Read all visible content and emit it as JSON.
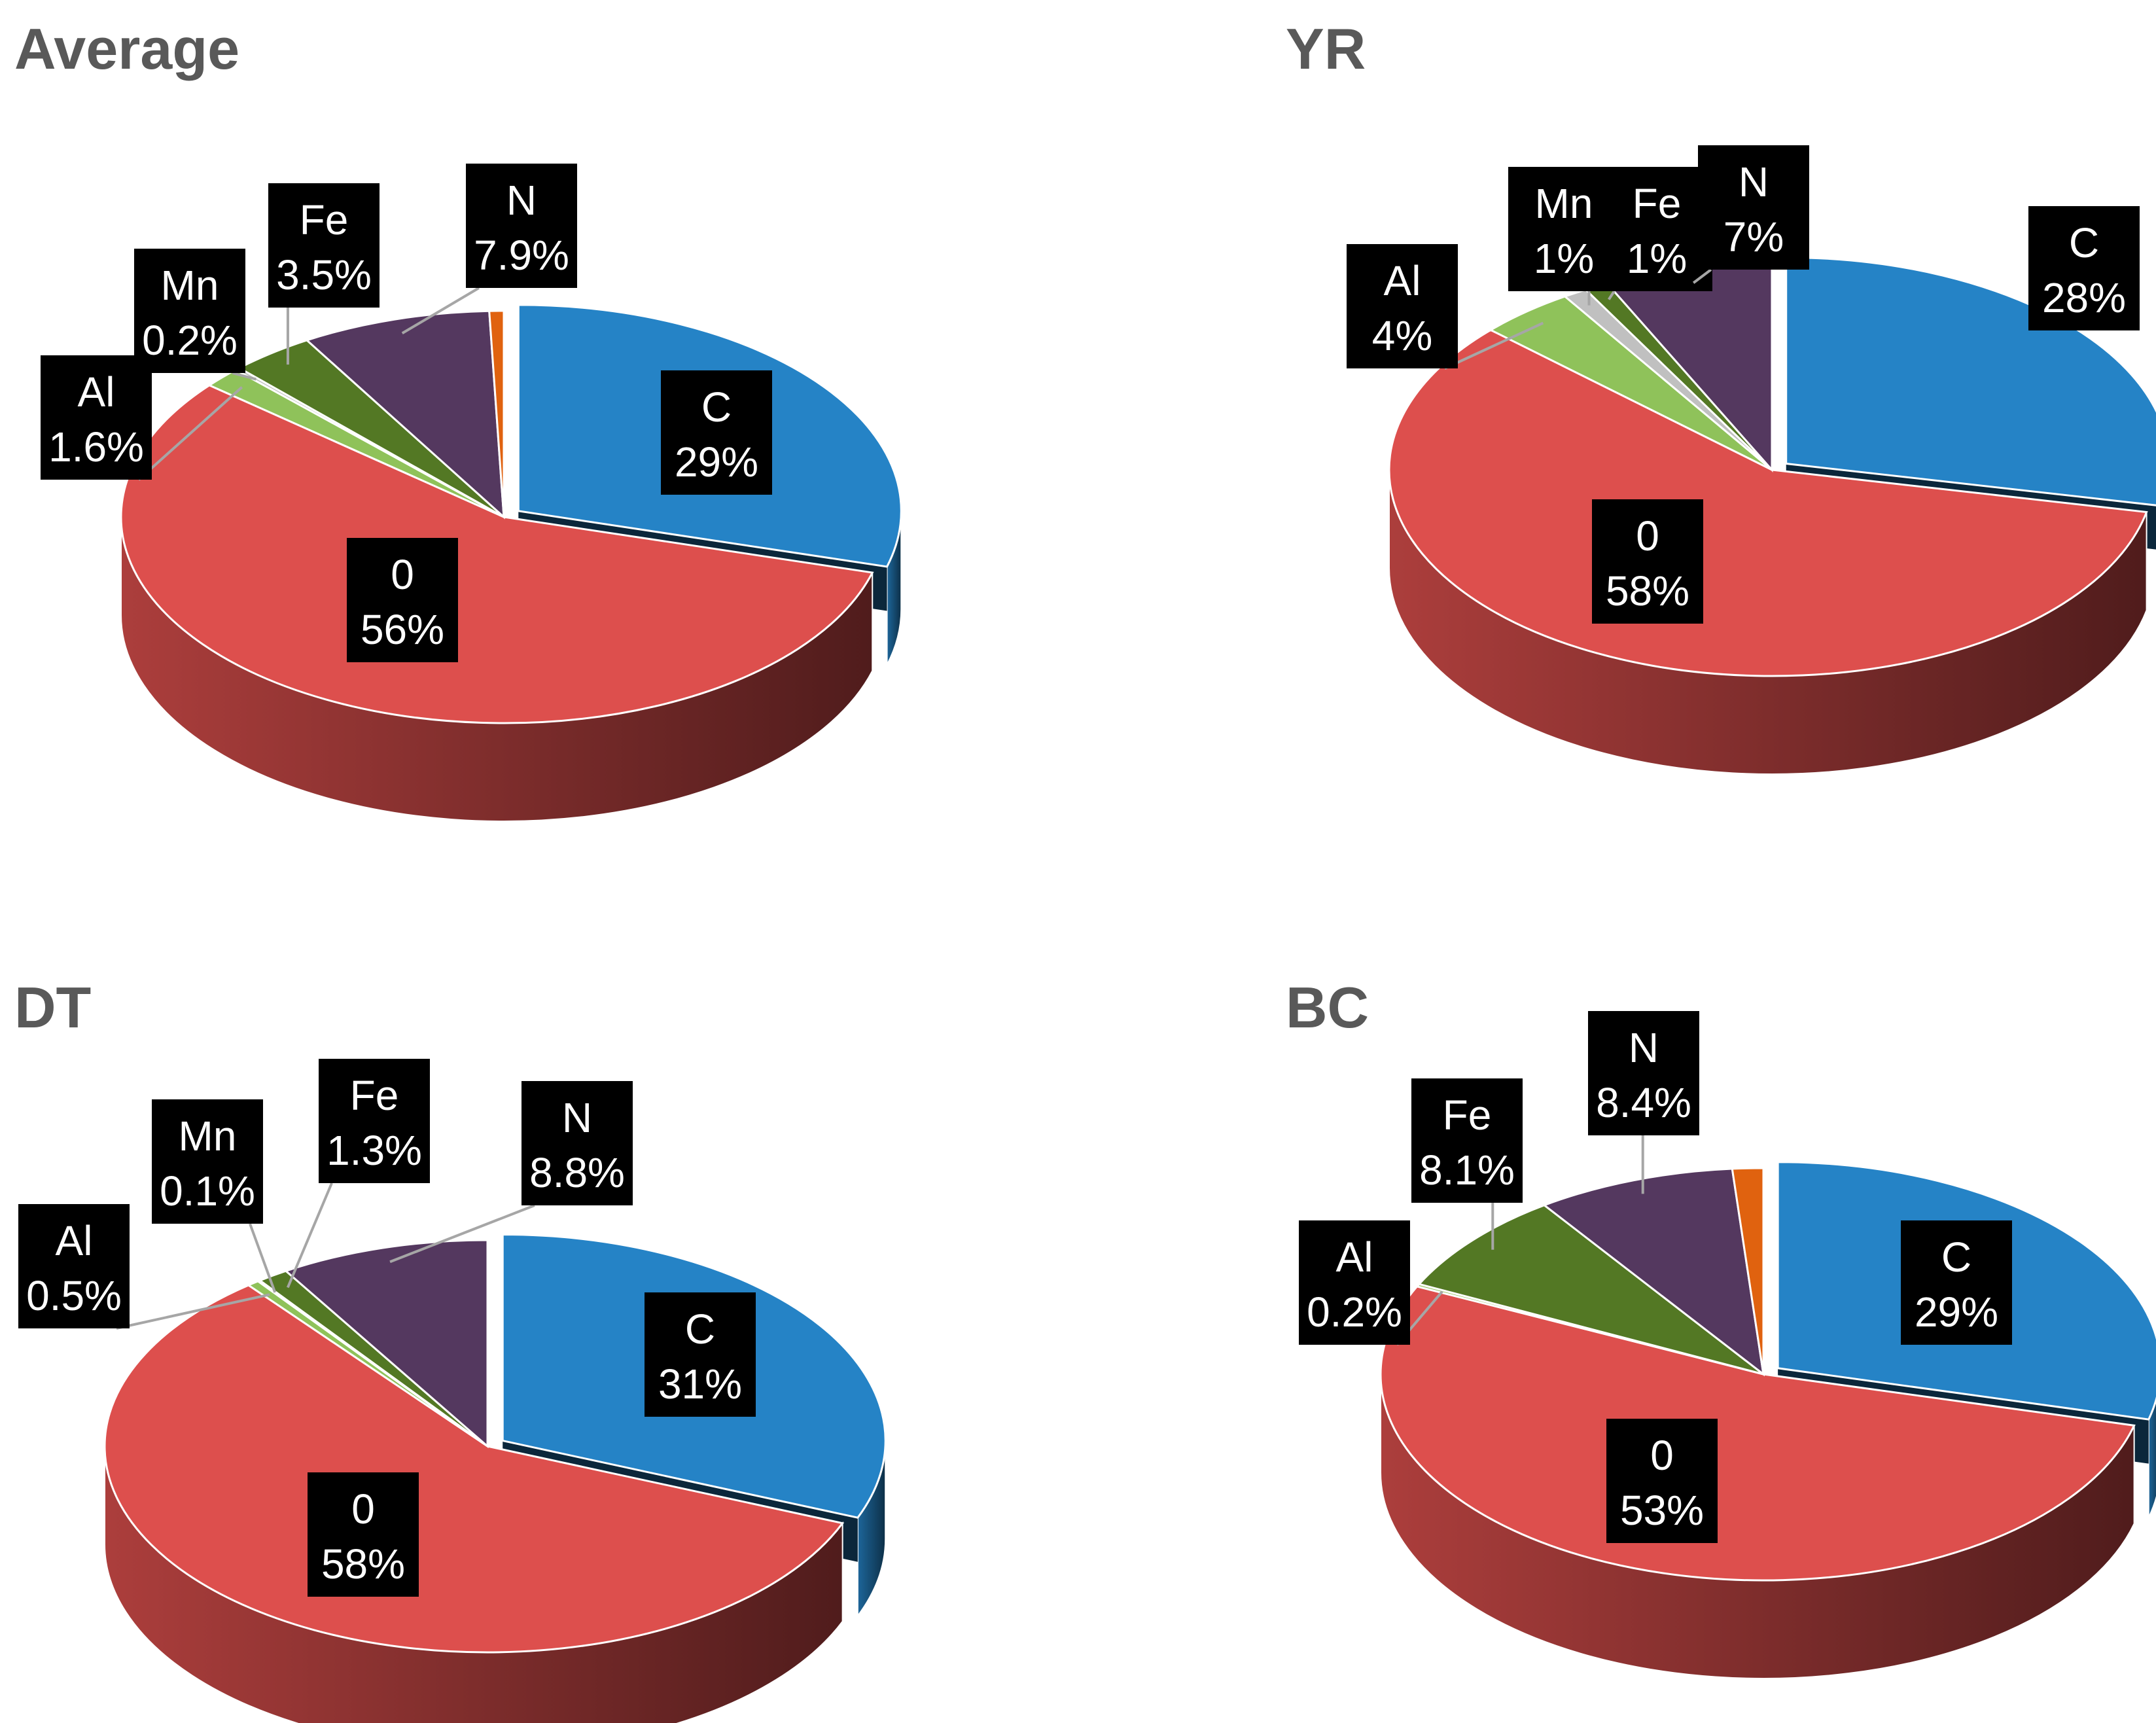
{
  "colors": {
    "C": "#2583c6",
    "O": "#dd4f4d",
    "Al": "#8fc25a",
    "Mn": "#c0c0c0",
    "Fe": "#537824",
    "N": "#54385f",
    "other": "#e0620f"
  },
  "chart_data": [
    {
      "type": "pie",
      "title": "Average",
      "slices": [
        {
          "key": "C",
          "label": "C",
          "value": 29,
          "value_label": "29%"
        },
        {
          "key": "O",
          "label": "0",
          "value": 56,
          "value_label": "56%"
        },
        {
          "key": "Al",
          "label": "Al",
          "value": 1.6,
          "value_label": "1.6%"
        },
        {
          "key": "Mn",
          "label": "Mn",
          "value": 0.2,
          "value_label": "0.2%"
        },
        {
          "key": "Fe",
          "label": "Fe",
          "value": 3.5,
          "value_label": "3.5%"
        },
        {
          "key": "N",
          "label": "N",
          "value": 7.9,
          "value_label": "7.9%"
        },
        {
          "key": "other",
          "label": "",
          "value": 0.6,
          "value_label": ""
        }
      ]
    },
    {
      "type": "pie",
      "title": "YR",
      "slices": [
        {
          "key": "C",
          "label": "C",
          "value": 28,
          "value_label": "28%"
        },
        {
          "key": "O",
          "label": "0",
          "value": 58,
          "value_label": "58%"
        },
        {
          "key": "Al",
          "label": "Al",
          "value": 4,
          "value_label": "4%"
        },
        {
          "key": "Mn",
          "label": "Mn",
          "value": 1,
          "value_label": "1%"
        },
        {
          "key": "Fe",
          "label": "Fe",
          "value": 1,
          "value_label": "1%"
        },
        {
          "key": "N",
          "label": "N",
          "value": 7,
          "value_label": "7%"
        }
      ]
    },
    {
      "type": "pie",
      "title": "DT",
      "slices": [
        {
          "key": "C",
          "label": "C",
          "value": 31,
          "value_label": "31%"
        },
        {
          "key": "O",
          "label": "0",
          "value": 58,
          "value_label": "58%"
        },
        {
          "key": "Al",
          "label": "Al",
          "value": 0.5,
          "value_label": "0.5%"
        },
        {
          "key": "Mn",
          "label": "Mn",
          "value": 0.1,
          "value_label": "0.1%"
        },
        {
          "key": "Fe",
          "label": "Fe",
          "value": 1.3,
          "value_label": "1.3%"
        },
        {
          "key": "N",
          "label": "N",
          "value": 8.8,
          "value_label": "8.8%"
        }
      ]
    },
    {
      "type": "pie",
      "title": "BC",
      "slices": [
        {
          "key": "C",
          "label": "C",
          "value": 29,
          "value_label": "29%"
        },
        {
          "key": "O",
          "label": "0",
          "value": 53,
          "value_label": "53%"
        },
        {
          "key": "Al",
          "label": "Al",
          "value": 0.2,
          "value_label": "0.2%"
        },
        {
          "key": "Fe",
          "label": "Fe",
          "value": 8.1,
          "value_label": "8.1%"
        },
        {
          "key": "N",
          "label": "N",
          "value": 8.4,
          "value_label": "8.4%"
        },
        {
          "key": "other",
          "label": "",
          "value": 1.3,
          "value_label": ""
        }
      ]
    }
  ]
}
